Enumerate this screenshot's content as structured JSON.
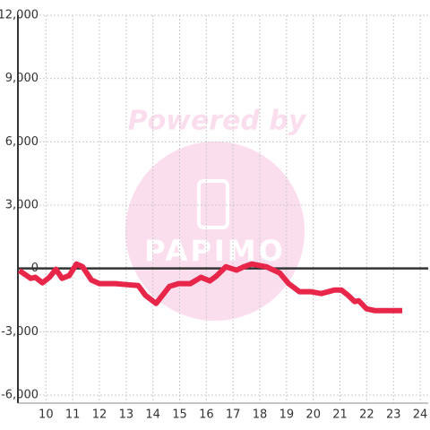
{
  "chart_data": {
    "type": "line",
    "watermark": {
      "text": "Powered by",
      "brand": "PAPIMO"
    },
    "series": [
      {
        "color": "#e8264a",
        "x": [
          9.0,
          9.43,
          9.6,
          9.87,
          10.13,
          10.37,
          10.6,
          10.87,
          11.14,
          11.37,
          11.7,
          12.0,
          12.6,
          12.95,
          13.45,
          13.72,
          14.12,
          14.62,
          14.96,
          15.4,
          15.8,
          16.13,
          16.36,
          16.73,
          17.13,
          17.4,
          17.7,
          18.24,
          18.74,
          19.08,
          19.48,
          19.9,
          20.3,
          20.8,
          21.05,
          21.3,
          21.55,
          21.7,
          21.99,
          22.32,
          23.33
        ],
        "values": [
          -100,
          -470,
          -420,
          -680,
          -420,
          -40,
          -470,
          -340,
          210,
          80,
          -550,
          -720,
          -720,
          -760,
          -810,
          -1270,
          -1660,
          -850,
          -720,
          -720,
          -420,
          -590,
          -380,
          80,
          -80,
          80,
          210,
          80,
          -210,
          -720,
          -1100,
          -1100,
          -1190,
          -1020,
          -1020,
          -1270,
          -1570,
          -1530,
          -1910,
          -2000,
          -2000
        ]
      }
    ],
    "xlim": [
      8.95,
      24.3
    ],
    "xticks": [
      10,
      11,
      12,
      13,
      14,
      15,
      16,
      17,
      18,
      19,
      20,
      21,
      22,
      23,
      24
    ],
    "ylim": [
      -6000,
      12000
    ],
    "yticks": [
      {
        "value": -6000,
        "label": "-6,000"
      },
      {
        "value": -3000,
        "label": "-3,000"
      },
      0,
      {
        "value": 3000,
        "label": "3,000"
      },
      {
        "value": 6000,
        "label": "6,000"
      },
      {
        "value": 9000,
        "label": "9,000"
      },
      {
        "value": 12000,
        "label": "12,000"
      }
    ],
    "grid": true
  }
}
